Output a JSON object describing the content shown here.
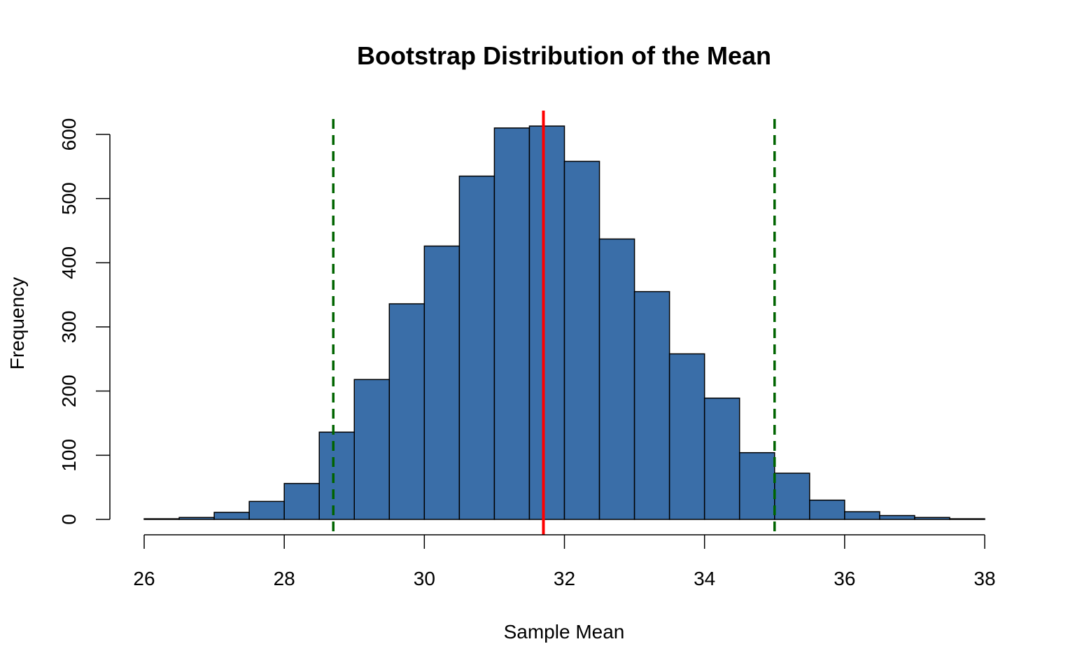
{
  "chart_data": {
    "type": "bar",
    "title": "Bootstrap Distribution of the Mean",
    "xlabel": "Sample Mean",
    "ylabel": "Frequency",
    "xlim": [
      26,
      38
    ],
    "ylim": [
      0,
      600
    ],
    "x_ticks": [
      26,
      28,
      30,
      32,
      34,
      36,
      38
    ],
    "y_ticks": [
      0,
      100,
      200,
      300,
      400,
      500,
      600
    ],
    "bin_width": 0.5,
    "bins": [
      {
        "start": 26.0,
        "end": 26.5,
        "count": 1
      },
      {
        "start": 26.5,
        "end": 27.0,
        "count": 3
      },
      {
        "start": 27.0,
        "end": 27.5,
        "count": 11
      },
      {
        "start": 27.5,
        "end": 28.0,
        "count": 28
      },
      {
        "start": 28.0,
        "end": 28.5,
        "count": 56
      },
      {
        "start": 28.5,
        "end": 29.0,
        "count": 136
      },
      {
        "start": 29.0,
        "end": 29.5,
        "count": 218
      },
      {
        "start": 29.5,
        "end": 30.0,
        "count": 336
      },
      {
        "start": 30.0,
        "end": 30.5,
        "count": 426
      },
      {
        "start": 30.5,
        "end": 31.0,
        "count": 535
      },
      {
        "start": 31.0,
        "end": 31.5,
        "count": 610
      },
      {
        "start": 31.5,
        "end": 32.0,
        "count": 613
      },
      {
        "start": 32.0,
        "end": 32.5,
        "count": 558
      },
      {
        "start": 32.5,
        "end": 33.0,
        "count": 437
      },
      {
        "start": 33.0,
        "end": 33.5,
        "count": 355
      },
      {
        "start": 33.5,
        "end": 34.0,
        "count": 258
      },
      {
        "start": 34.0,
        "end": 34.5,
        "count": 189
      },
      {
        "start": 34.5,
        "end": 35.0,
        "count": 104
      },
      {
        "start": 35.0,
        "end": 35.5,
        "count": 72
      },
      {
        "start": 35.5,
        "end": 36.0,
        "count": 30
      },
      {
        "start": 36.0,
        "end": 36.5,
        "count": 12
      },
      {
        "start": 36.5,
        "end": 37.0,
        "count": 6
      },
      {
        "start": 37.0,
        "end": 37.5,
        "count": 3
      },
      {
        "start": 37.5,
        "end": 38.0,
        "count": 1
      }
    ],
    "reference_lines": [
      {
        "value": 31.7,
        "color": "#ff0000",
        "style": "solid"
      },
      {
        "value": 28.7,
        "color": "#006400",
        "style": "dashed"
      },
      {
        "value": 35.0,
        "color": "#006400",
        "style": "dashed"
      }
    ],
    "bar_fill": "#3a6ea8",
    "bar_stroke": "#000000",
    "grid": false,
    "legend": "none"
  }
}
